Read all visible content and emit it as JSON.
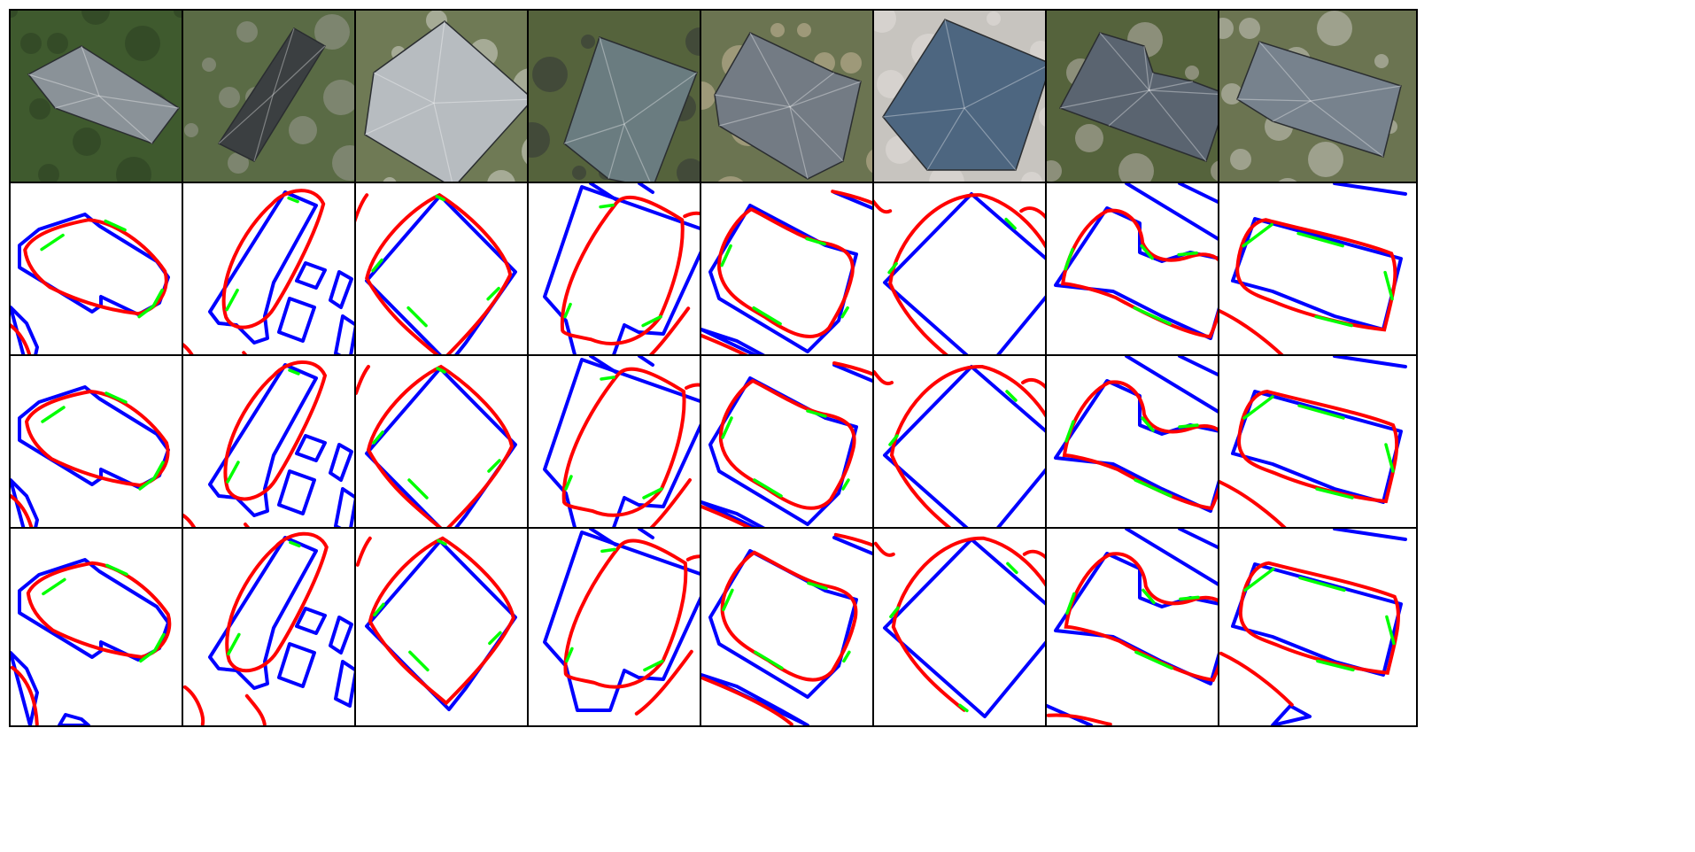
{
  "figure": {
    "rows": [
      {
        "kind": "aerial-photo"
      },
      {
        "kind": "contour-overlay"
      },
      {
        "kind": "contour-overlay"
      },
      {
        "kind": "contour-overlay"
      }
    ],
    "columns": 8
  },
  "colors": {
    "ground_truth": "#0000ff",
    "prediction": "#ff0000",
    "agreement": "#00ff00",
    "tile_border": "#000000",
    "background": "#ffffff"
  },
  "photos": [
    {
      "ground": "#3f5a2e",
      "roof": "#8a9298",
      "roof_shape": "hip-long",
      "accent": "#2c3f22"
    },
    {
      "ground": "#5a6b45",
      "roof": "#3b3f41",
      "roof_shape": "long-gable",
      "accent": "#9a9a92"
    },
    {
      "ground": "#6f7a55",
      "roof": "#b7bcc0",
      "roof_shape": "pyramid",
      "accent": "#d4d4cc"
    },
    {
      "ground": "#55633c",
      "roof": "#6a7c80",
      "roof_shape": "hip-glass",
      "accent": "#333637"
    },
    {
      "ground": "#6b7451",
      "roof": "#737b84",
      "roof_shape": "hip-ell",
      "accent": "#c8b89a"
    },
    {
      "ground": "#c7c4bf",
      "roof": "#4d6680",
      "roof_shape": "square-hip",
      "accent": "#e2dfda"
    },
    {
      "ground": "#55633c",
      "roof": "#5a6470",
      "roof_shape": "hip-notch",
      "accent": "#b9b5ad"
    },
    {
      "ground": "#6b7451",
      "roof": "#77828d",
      "roof_shape": "rect-hip",
      "accent": "#c9c6c0"
    }
  ]
}
